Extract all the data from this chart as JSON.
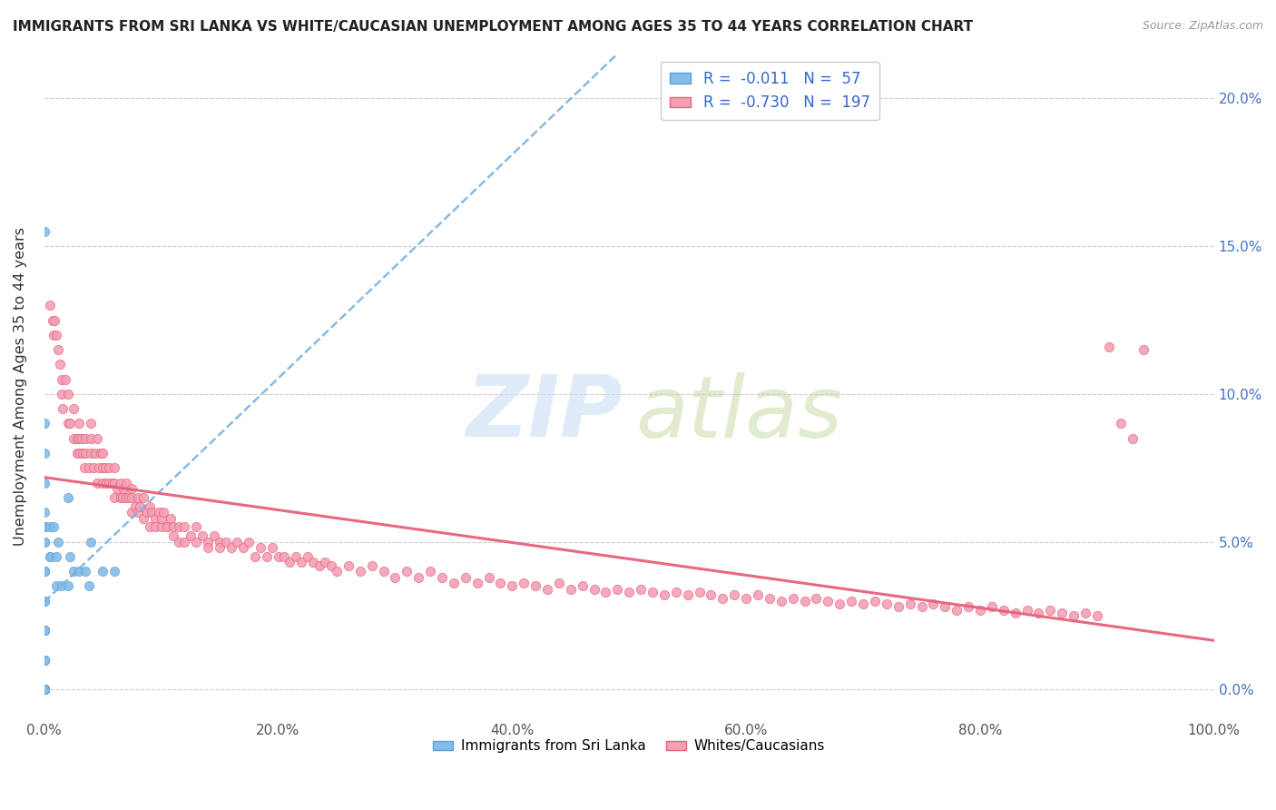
{
  "title": "IMMIGRANTS FROM SRI LANKA VS WHITE/CAUCASIAN UNEMPLOYMENT AMONG AGES 35 TO 44 YEARS CORRELATION CHART",
  "source": "Source: ZipAtlas.com",
  "ylabel": "Unemployment Among Ages 35 to 44 years",
  "xlim": [
    0.0,
    1.0
  ],
  "ylim": [
    -0.01,
    0.215
  ],
  "xticks": [
    0.0,
    0.2,
    0.4,
    0.6,
    0.8,
    1.0
  ],
  "xtick_labels": [
    "0.0%",
    "20.0%",
    "40.0%",
    "60.0%",
    "80.0%",
    "100.0%"
  ],
  "yticks": [
    0.0,
    0.05,
    0.1,
    0.15,
    0.2
  ],
  "right_ytick_labels": [
    "0.0%",
    "5.0%",
    "10.0%",
    "15.0%",
    "20.0%"
  ],
  "sri_lanka_color": "#85bce8",
  "sri_lanka_edge": "#5a9fd4",
  "white_color": "#f4a0b5",
  "white_edge": "#e8607a",
  "sri_lanka_R": "-0.011",
  "sri_lanka_N": "57",
  "white_R": "-0.730",
  "white_N": "197",
  "sri_lanka_trend_color": "#7ab3e0",
  "white_trend_color": "#e8607a",
  "background_color": "#ffffff",
  "legend_label_1": "Immigrants from Sri Lanka",
  "legend_label_2": "Whites/Caucasians",
  "sri_lanka_points_x": [
    0.0,
    0.0,
    0.0,
    0.0,
    0.0,
    0.0,
    0.0,
    0.0,
    0.0,
    0.0,
    0.0,
    0.0,
    0.0,
    0.0,
    0.0,
    0.0,
    0.0,
    0.0,
    0.0,
    0.0,
    0.0,
    0.0,
    0.0,
    0.0,
    0.0,
    0.0,
    0.0,
    0.0,
    0.0,
    0.0,
    0.0,
    0.0,
    0.0,
    0.0,
    0.0,
    0.0,
    0.0,
    0.0,
    0.0,
    0.005,
    0.005,
    0.005,
    0.008,
    0.01,
    0.01,
    0.012,
    0.015,
    0.02,
    0.02,
    0.022,
    0.025,
    0.03,
    0.035,
    0.038,
    0.04,
    0.05,
    0.06
  ],
  "sri_lanka_points_y": [
    0.155,
    0.0,
    0.0,
    0.0,
    0.0,
    0.0,
    0.0,
    0.0,
    0.0,
    0.0,
    0.0,
    0.0,
    0.0,
    0.0,
    0.0,
    0.0,
    0.01,
    0.01,
    0.01,
    0.02,
    0.02,
    0.02,
    0.02,
    0.02,
    0.02,
    0.03,
    0.03,
    0.04,
    0.04,
    0.04,
    0.05,
    0.05,
    0.055,
    0.055,
    0.055,
    0.06,
    0.07,
    0.08,
    0.09,
    0.055,
    0.045,
    0.045,
    0.055,
    0.035,
    0.045,
    0.05,
    0.035,
    0.065,
    0.035,
    0.045,
    0.04,
    0.04,
    0.04,
    0.035,
    0.05,
    0.04,
    0.04
  ],
  "white_points_x": [
    0.005,
    0.007,
    0.008,
    0.009,
    0.01,
    0.012,
    0.013,
    0.015,
    0.015,
    0.016,
    0.018,
    0.02,
    0.02,
    0.022,
    0.025,
    0.025,
    0.028,
    0.028,
    0.03,
    0.03,
    0.03,
    0.032,
    0.033,
    0.034,
    0.035,
    0.035,
    0.038,
    0.04,
    0.04,
    0.04,
    0.042,
    0.044,
    0.045,
    0.045,
    0.047,
    0.048,
    0.05,
    0.05,
    0.05,
    0.052,
    0.053,
    0.055,
    0.055,
    0.058,
    0.06,
    0.06,
    0.06,
    0.062,
    0.065,
    0.065,
    0.067,
    0.068,
    0.07,
    0.07,
    0.072,
    0.075,
    0.075,
    0.075,
    0.078,
    0.08,
    0.08,
    0.082,
    0.085,
    0.085,
    0.088,
    0.09,
    0.09,
    0.092,
    0.095,
    0.095,
    0.098,
    0.1,
    0.1,
    0.102,
    0.105,
    0.105,
    0.108,
    0.11,
    0.11,
    0.115,
    0.115,
    0.12,
    0.12,
    0.125,
    0.13,
    0.13,
    0.135,
    0.14,
    0.14,
    0.145,
    0.15,
    0.15,
    0.155,
    0.16,
    0.165,
    0.17,
    0.175,
    0.18,
    0.185,
    0.19,
    0.195,
    0.2,
    0.205,
    0.21,
    0.215,
    0.22,
    0.225,
    0.23,
    0.235,
    0.24,
    0.245,
    0.25,
    0.26,
    0.27,
    0.28,
    0.29,
    0.3,
    0.31,
    0.32,
    0.33,
    0.34,
    0.35,
    0.36,
    0.37,
    0.38,
    0.39,
    0.4,
    0.41,
    0.42,
    0.43,
    0.44,
    0.45,
    0.46,
    0.47,
    0.48,
    0.49,
    0.5,
    0.51,
    0.52,
    0.53,
    0.54,
    0.55,
    0.56,
    0.57,
    0.58,
    0.59,
    0.6,
    0.61,
    0.62,
    0.63,
    0.64,
    0.65,
    0.66,
    0.67,
    0.68,
    0.69,
    0.7,
    0.71,
    0.72,
    0.73,
    0.74,
    0.75,
    0.76,
    0.77,
    0.78,
    0.79,
    0.8,
    0.81,
    0.82,
    0.83,
    0.84,
    0.85,
    0.86,
    0.87,
    0.88,
    0.89,
    0.9,
    0.91,
    0.92,
    0.93,
    0.94,
    0.95,
    0.96,
    0.97,
    0.98,
    0.99,
    0.995
  ],
  "white_points_y": [
    0.13,
    0.125,
    0.12,
    0.125,
    0.12,
    0.115,
    0.11,
    0.105,
    0.1,
    0.095,
    0.105,
    0.1,
    0.09,
    0.09,
    0.095,
    0.085,
    0.085,
    0.08,
    0.09,
    0.085,
    0.08,
    0.085,
    0.08,
    0.075,
    0.085,
    0.08,
    0.075,
    0.09,
    0.085,
    0.08,
    0.075,
    0.08,
    0.085,
    0.07,
    0.075,
    0.08,
    0.075,
    0.08,
    0.07,
    0.075,
    0.07,
    0.075,
    0.07,
    0.07,
    0.075,
    0.065,
    0.07,
    0.068,
    0.065,
    0.07,
    0.065,
    0.068,
    0.07,
    0.065,
    0.065,
    0.068,
    0.06,
    0.065,
    0.062,
    0.065,
    0.06,
    0.062,
    0.065,
    0.058,
    0.06,
    0.062,
    0.055,
    0.06,
    0.058,
    0.055,
    0.06,
    0.055,
    0.058,
    0.06,
    0.055,
    0.055,
    0.058,
    0.055,
    0.052,
    0.055,
    0.05,
    0.055,
    0.05,
    0.052,
    0.055,
    0.05,
    0.052,
    0.05,
    0.048,
    0.052,
    0.05,
    0.048,
    0.05,
    0.048,
    0.05,
    0.048,
    0.05,
    0.045,
    0.048,
    0.045,
    0.048,
    0.045,
    0.045,
    0.043,
    0.045,
    0.043,
    0.045,
    0.043,
    0.042,
    0.043,
    0.042,
    0.04,
    0.042,
    0.04,
    0.042,
    0.04,
    0.038,
    0.04,
    0.038,
    0.04,
    0.038,
    0.036,
    0.038,
    0.036,
    0.038,
    0.036,
    0.035,
    0.036,
    0.035,
    0.034,
    0.036,
    0.034,
    0.035,
    0.034,
    0.033,
    0.034,
    0.033,
    0.034,
    0.033,
    0.032,
    0.033,
    0.032,
    0.033,
    0.032,
    0.031,
    0.032,
    0.031,
    0.032,
    0.031,
    0.03,
    0.031,
    0.03,
    0.031,
    0.03,
    0.029,
    0.03,
    0.029,
    0.03,
    0.029,
    0.028,
    0.029,
    0.028,
    0.029,
    0.028,
    0.027,
    0.028,
    0.027,
    0.028,
    0.027,
    0.026,
    0.027,
    0.026,
    0.027,
    0.026,
    0.025,
    0.026,
    0.025,
    0.116,
    0.09,
    0.085,
    0.115
  ]
}
